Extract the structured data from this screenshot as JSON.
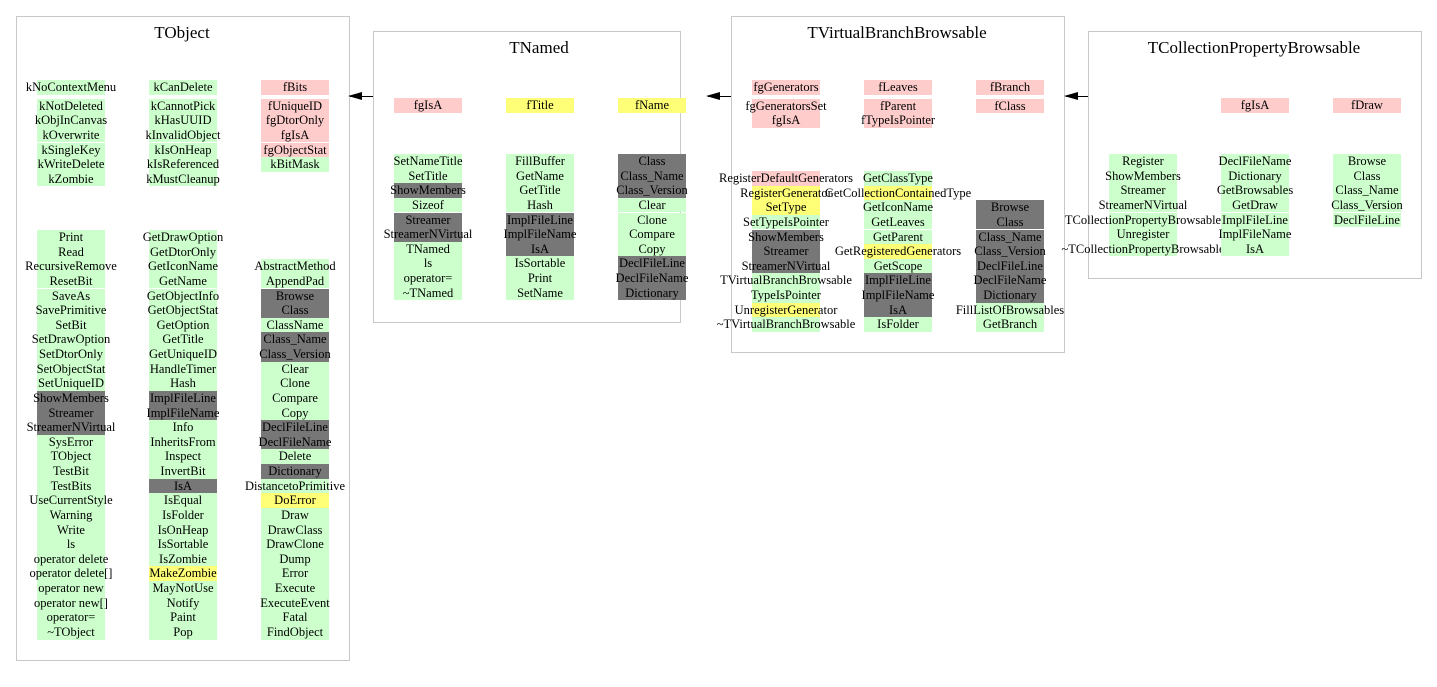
{
  "colors": {
    "g": "#ccffcc",
    "p": "#ffcccc",
    "y": "#ffff77",
    "d": "#777777"
  },
  "classes": [
    {
      "title": "TObject",
      "fields": [
        [
          {
            "t": "kNoContextMenu",
            "c": "g"
          },
          {
            "t": "kNotDeleted",
            "c": "g"
          },
          {
            "t": "kObjInCanvas",
            "c": "g"
          },
          {
            "t": "kOverwrite",
            "c": "g"
          },
          {
            "t": "kSingleKey",
            "c": "g"
          },
          {
            "t": "kWriteDelete",
            "c": "g"
          },
          {
            "t": "kZombie",
            "c": "g"
          }
        ],
        [
          {
            "t": "kCanDelete",
            "c": "g"
          },
          {
            "t": "kCannotPick",
            "c": "g"
          },
          {
            "t": "kHasUUID",
            "c": "g"
          },
          {
            "t": "kInvalidObject",
            "c": "g"
          },
          {
            "t": "kIsOnHeap",
            "c": "g"
          },
          {
            "t": "kIsReferenced",
            "c": "g"
          },
          {
            "t": "kMustCleanup",
            "c": "g"
          }
        ],
        [
          {
            "t": "fBits",
            "c": "p"
          },
          {
            "t": "fUniqueID",
            "c": "p"
          },
          {
            "t": "fgDtorOnly",
            "c": "p"
          },
          {
            "t": "fgIsA",
            "c": "p"
          },
          {
            "t": "fgObjectStat",
            "c": "p"
          },
          {
            "t": "kBitMask",
            "c": "g"
          }
        ]
      ],
      "methods": [
        [
          {
            "t": "Print",
            "c": "g"
          },
          {
            "t": "Read",
            "c": "g"
          },
          {
            "t": "RecursiveRemove",
            "c": "g"
          },
          {
            "t": "ResetBit",
            "c": "g"
          },
          {
            "t": "SaveAs",
            "c": "g"
          },
          {
            "t": "SavePrimitive",
            "c": "g"
          },
          {
            "t": "SetBit",
            "c": "g"
          },
          {
            "t": "SetDrawOption",
            "c": "g"
          },
          {
            "t": "SetDtorOnly",
            "c": "g"
          },
          {
            "t": "SetObjectStat",
            "c": "g"
          },
          {
            "t": "SetUniqueID",
            "c": "g"
          },
          {
            "t": "ShowMembers",
            "c": "d"
          },
          {
            "t": "Streamer",
            "c": "d"
          },
          {
            "t": "StreamerNVirtual",
            "c": "d"
          },
          {
            "t": "SysError",
            "c": "g"
          },
          {
            "t": "TObject",
            "c": "g"
          },
          {
            "t": "TestBit",
            "c": "g"
          },
          {
            "t": "TestBits",
            "c": "g"
          },
          {
            "t": "UseCurrentStyle",
            "c": "g"
          },
          {
            "t": "Warning",
            "c": "g"
          },
          {
            "t": "Write",
            "c": "g"
          },
          {
            "t": "ls",
            "c": "g"
          },
          {
            "t": "operator delete",
            "c": "g"
          },
          {
            "t": "operator delete[]",
            "c": "g"
          },
          {
            "t": "operator new",
            "c": "g"
          },
          {
            "t": "operator new[]",
            "c": "g"
          },
          {
            "t": "operator=",
            "c": "g"
          },
          {
            "t": "~TObject",
            "c": "g"
          }
        ],
        [
          {
            "t": "GetDrawOption",
            "c": "g"
          },
          {
            "t": "GetDtorOnly",
            "c": "g"
          },
          {
            "t": "GetIconName",
            "c": "g"
          },
          {
            "t": "GetName",
            "c": "g"
          },
          {
            "t": "GetObjectInfo",
            "c": "g"
          },
          {
            "t": "GetObjectStat",
            "c": "g"
          },
          {
            "t": "GetOption",
            "c": "g"
          },
          {
            "t": "GetTitle",
            "c": "g"
          },
          {
            "t": "GetUniqueID",
            "c": "g"
          },
          {
            "t": "HandleTimer",
            "c": "g"
          },
          {
            "t": "Hash",
            "c": "g"
          },
          {
            "t": "ImplFileLine",
            "c": "d"
          },
          {
            "t": "ImplFileName",
            "c": "d"
          },
          {
            "t": "Info",
            "c": "g"
          },
          {
            "t": "InheritsFrom",
            "c": "g"
          },
          {
            "t": "Inspect",
            "c": "g"
          },
          {
            "t": "InvertBit",
            "c": "g"
          },
          {
            "t": "IsA",
            "c": "d"
          },
          {
            "t": "IsEqual",
            "c": "g"
          },
          {
            "t": "IsFolder",
            "c": "g"
          },
          {
            "t": "IsOnHeap",
            "c": "g"
          },
          {
            "t": "IsSortable",
            "c": "g"
          },
          {
            "t": "IsZombie",
            "c": "g"
          },
          {
            "t": "MakeZombie",
            "c": "y"
          },
          {
            "t": "MayNotUse",
            "c": "g"
          },
          {
            "t": "Notify",
            "c": "g"
          },
          {
            "t": "Paint",
            "c": "g"
          },
          {
            "t": "Pop",
            "c": "g"
          }
        ],
        [
          {
            "t": "AbstractMethod",
            "c": "g"
          },
          {
            "t": "AppendPad",
            "c": "g"
          },
          {
            "t": "Browse",
            "c": "d"
          },
          {
            "t": "Class",
            "c": "d"
          },
          {
            "t": "ClassName",
            "c": "g"
          },
          {
            "t": "Class_Name",
            "c": "d"
          },
          {
            "t": "Class_Version",
            "c": "d"
          },
          {
            "t": "Clear",
            "c": "g"
          },
          {
            "t": "Clone",
            "c": "g"
          },
          {
            "t": "Compare",
            "c": "g"
          },
          {
            "t": "Copy",
            "c": "g"
          },
          {
            "t": "DeclFileLine",
            "c": "d"
          },
          {
            "t": "DeclFileName",
            "c": "d"
          },
          {
            "t": "Delete",
            "c": "g"
          },
          {
            "t": "Dictionary",
            "c": "d"
          },
          {
            "t": "DistancetoPrimitive",
            "c": "g"
          },
          {
            "t": "DoError",
            "c": "y"
          },
          {
            "t": "Draw",
            "c": "g"
          },
          {
            "t": "DrawClass",
            "c": "g"
          },
          {
            "t": "DrawClone",
            "c": "g"
          },
          {
            "t": "Dump",
            "c": "g"
          },
          {
            "t": "Error",
            "c": "g"
          },
          {
            "t": "Execute",
            "c": "g"
          },
          {
            "t": "ExecuteEvent",
            "c": "g"
          },
          {
            "t": "Fatal",
            "c": "g"
          },
          {
            "t": "FindObject",
            "c": "g"
          }
        ]
      ]
    },
    {
      "title": "TNamed",
      "fields": [
        [
          {
            "t": "fgIsA",
            "c": "p"
          }
        ],
        [
          {
            "t": "fTitle",
            "c": "y"
          }
        ],
        [
          {
            "t": "fName",
            "c": "y"
          }
        ]
      ],
      "methods": [
        [
          {
            "t": "SetNameTitle",
            "c": "g"
          },
          {
            "t": "SetTitle",
            "c": "g"
          },
          {
            "t": "ShowMembers",
            "c": "d"
          },
          {
            "t": "Sizeof",
            "c": "g"
          },
          {
            "t": "Streamer",
            "c": "d"
          },
          {
            "t": "StreamerNVirtual",
            "c": "d"
          },
          {
            "t": "TNamed",
            "c": "g"
          },
          {
            "t": "ls",
            "c": "g"
          },
          {
            "t": "operator=",
            "c": "g"
          },
          {
            "t": "~TNamed",
            "c": "g"
          }
        ],
        [
          {
            "t": "FillBuffer",
            "c": "g"
          },
          {
            "t": "GetName",
            "c": "g"
          },
          {
            "t": "GetTitle",
            "c": "g"
          },
          {
            "t": "Hash",
            "c": "g"
          },
          {
            "t": "ImplFileLine",
            "c": "d"
          },
          {
            "t": "ImplFileName",
            "c": "d"
          },
          {
            "t": "IsA",
            "c": "d"
          },
          {
            "t": "IsSortable",
            "c": "g"
          },
          {
            "t": "Print",
            "c": "g"
          },
          {
            "t": "SetName",
            "c": "g"
          }
        ],
        [
          {
            "t": "Class",
            "c": "d"
          },
          {
            "t": "Class_Name",
            "c": "d"
          },
          {
            "t": "Class_Version",
            "c": "d"
          },
          {
            "t": "Clear",
            "c": "g"
          },
          {
            "t": "Clone",
            "c": "g"
          },
          {
            "t": "Compare",
            "c": "g"
          },
          {
            "t": "Copy",
            "c": "g"
          },
          {
            "t": "DeclFileLine",
            "c": "d"
          },
          {
            "t": "DeclFileName",
            "c": "d"
          },
          {
            "t": "Dictionary",
            "c": "d"
          }
        ]
      ]
    },
    {
      "title": "TVirtualBranchBrowsable",
      "fields": [
        [
          {
            "t": "fgGenerators",
            "c": "p"
          },
          {
            "t": "fgGeneratorsSet",
            "c": "p"
          },
          {
            "t": "fgIsA",
            "c": "p"
          }
        ],
        [
          {
            "t": "fLeaves",
            "c": "p"
          },
          {
            "t": "fParent",
            "c": "p"
          },
          {
            "t": "fTypeIsPointer",
            "c": "p"
          }
        ],
        [
          {
            "t": "fBranch",
            "c": "p"
          },
          {
            "t": "fClass",
            "c": "p"
          }
        ]
      ],
      "methods": [
        [
          {
            "t": "RegisterDefaultGenerators",
            "c": "p"
          },
          {
            "t": "RegisterGenerator",
            "c": "y"
          },
          {
            "t": "SetType",
            "c": "y"
          },
          {
            "t": "SetTypeIsPointer",
            "c": "g"
          },
          {
            "t": "ShowMembers",
            "c": "d"
          },
          {
            "t": "Streamer",
            "c": "d"
          },
          {
            "t": "StreamerNVirtual",
            "c": "d"
          },
          {
            "t": "TVirtualBranchBrowsable",
            "c": "g"
          },
          {
            "t": "TypeIsPointer",
            "c": "g"
          },
          {
            "t": "UnregisterGenerator",
            "c": "y"
          },
          {
            "t": "~TVirtualBranchBrowsable",
            "c": "g"
          }
        ],
        [
          {
            "t": "GetClassType",
            "c": "g"
          },
          {
            "t": "GetCollectionContainedType",
            "c": "y"
          },
          {
            "t": "GetIconName",
            "c": "g"
          },
          {
            "t": "GetLeaves",
            "c": "g"
          },
          {
            "t": "GetParent",
            "c": "g"
          },
          {
            "t": "GetRegisteredGenerators",
            "c": "y"
          },
          {
            "t": "GetScope",
            "c": "g"
          },
          {
            "t": "ImplFileLine",
            "c": "d"
          },
          {
            "t": "ImplFileName",
            "c": "d"
          },
          {
            "t": "IsA",
            "c": "d"
          },
          {
            "t": "IsFolder",
            "c": "g"
          }
        ],
        [
          {
            "t": "Browse",
            "c": "d"
          },
          {
            "t": "Class",
            "c": "d"
          },
          {
            "t": "Class_Name",
            "c": "d"
          },
          {
            "t": "Class_Version",
            "c": "d"
          },
          {
            "t": "DeclFileLine",
            "c": "d"
          },
          {
            "t": "DeclFileName",
            "c": "d"
          },
          {
            "t": "Dictionary",
            "c": "d"
          },
          {
            "t": "FillListOfBrowsables",
            "c": "g"
          },
          {
            "t": "GetBranch",
            "c": "g"
          }
        ]
      ]
    },
    {
      "title": "TCollectionPropertyBrowsable",
      "fields": [
        [],
        [
          {
            "t": "fgIsA",
            "c": "p"
          }
        ],
        [
          {
            "t": "fDraw",
            "c": "p"
          }
        ]
      ],
      "methods": [
        [
          {
            "t": "Register",
            "c": "g"
          },
          {
            "t": "ShowMembers",
            "c": "g"
          },
          {
            "t": "Streamer",
            "c": "g"
          },
          {
            "t": "StreamerNVirtual",
            "c": "g"
          },
          {
            "t": "TCollectionPropertyBrowsable",
            "c": "g"
          },
          {
            "t": "Unregister",
            "c": "g"
          },
          {
            "t": "~TCollectionPropertyBrowsable",
            "c": "g"
          }
        ],
        [
          {
            "t": "DeclFileName",
            "c": "g"
          },
          {
            "t": "Dictionary",
            "c": "g"
          },
          {
            "t": "GetBrowsables",
            "c": "g"
          },
          {
            "t": "GetDraw",
            "c": "g"
          },
          {
            "t": "ImplFileLine",
            "c": "g"
          },
          {
            "t": "ImplFileName",
            "c": "g"
          },
          {
            "t": "IsA",
            "c": "g"
          }
        ],
        [
          {
            "t": "Browse",
            "c": "g"
          },
          {
            "t": "Class",
            "c": "g"
          },
          {
            "t": "Class_Name",
            "c": "g"
          },
          {
            "t": "Class_Version",
            "c": "g"
          },
          {
            "t": "DeclFileLine",
            "c": "g"
          }
        ]
      ]
    }
  ],
  "inheritance": [
    {
      "from": "TNamed",
      "to": "TObject"
    },
    {
      "from": "TVirtualBranchBrowsable",
      "to": "TNamed"
    },
    {
      "from": "TCollectionPropertyBrowsable",
      "to": "TVirtualBranchBrowsable"
    }
  ]
}
